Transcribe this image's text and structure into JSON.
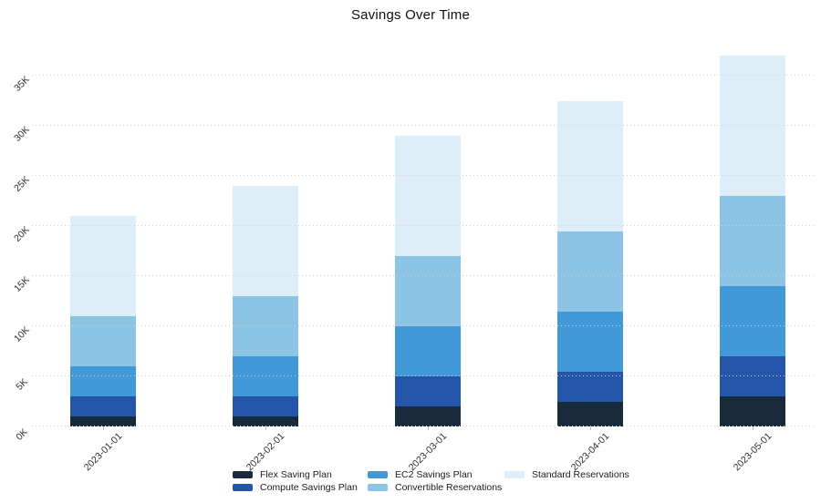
{
  "chart_data": {
    "type": "bar",
    "stacked": true,
    "title": "Savings Over Time",
    "xlabel": "",
    "ylabel": "",
    "y_unit": "thousands (K)",
    "categories": [
      "2023-01-01",
      "2023-02-01",
      "2023-03-01",
      "2023-04-01",
      "2023-05-01"
    ],
    "series": [
      {
        "name": "Flex Saving Plan",
        "color": "#1a2a3d",
        "values": [
          1000,
          1000,
          2000,
          2500,
          3000
        ]
      },
      {
        "name": "Compute Savings Plan",
        "color": "#2356a8",
        "values": [
          2000,
          2000,
          3000,
          3000,
          4000
        ]
      },
      {
        "name": "EC2 Savings Plan",
        "color": "#4199d8",
        "values": [
          3000,
          4000,
          5000,
          6000,
          7000
        ]
      },
      {
        "name": "Convertible Reservations",
        "color": "#8bc4e5",
        "values": [
          5000,
          6000,
          7000,
          8000,
          9000
        ]
      },
      {
        "name": "Standard Reservations",
        "color": "#ddeef9",
        "values": [
          10000,
          11000,
          12000,
          13000,
          14000
        ]
      }
    ],
    "totals": [
      21000,
      24000,
      29000,
      32500,
      37000
    ],
    "ytick_values": [
      0,
      5000,
      10000,
      15000,
      20000,
      25000,
      30000,
      35000
    ],
    "ytick_labels": [
      "0K",
      "5K",
      "10K",
      "15K",
      "20K",
      "25K",
      "30K",
      "35K"
    ],
    "ylim": [
      0,
      38500
    ],
    "grid": "horizontal dotted, drawn over bars",
    "tick_label_rotation": 45,
    "legend_position": "bottom-center, 3 columns x 2 rows"
  }
}
